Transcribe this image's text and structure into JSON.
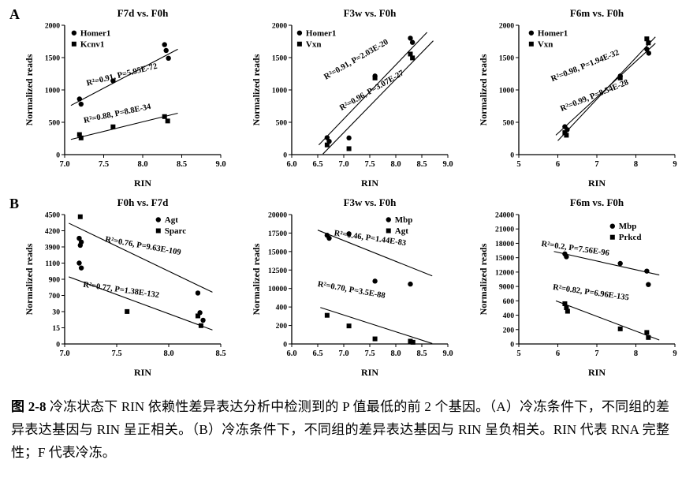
{
  "panels": {
    "a_label": "A",
    "b_label": "B"
  },
  "caption": {
    "label": "图 2-8",
    "text": " 冷冻状态下 RIN 依赖性差异表达分析中检测到的 P 值最低的前 2 个基因。（A）冷冻条件下，不同组的差异表达基因与 RIN 呈正相关。（B）冷冻条件下，不同组的差异表达基因与 RIN 呈负相关。RIN 代表 RNA 完整性；F 代表冷冻。"
  },
  "chart_data": [
    {
      "type": "scatter",
      "title": "F7d vs. F0h",
      "xlabel": "RIN",
      "ylabel": "Normalized reads",
      "x_ticks": [
        "7.0",
        "7.5",
        "8.0",
        "8.5",
        "9.0"
      ],
      "y_ticks": [
        "0",
        "500",
        "1000",
        "1500",
        "2000"
      ],
      "legend": {
        "fx": 0.06,
        "fy": 0.02
      },
      "series": [
        {
          "name": "Homer1",
          "marker": "circle",
          "points": [
            [
              7.19,
              860
            ],
            [
              7.21,
              780
            ],
            [
              7.62,
              1140
            ],
            [
              8.28,
              1700
            ],
            [
              8.3,
              1610
            ],
            [
              8.33,
              1490
            ]
          ]
        },
        {
          "name": "Kcnv1",
          "marker": "square",
          "points": [
            [
              7.19,
              310
            ],
            [
              7.21,
              258
            ],
            [
              7.62,
              430
            ],
            [
              8.28,
              588
            ],
            [
              8.32,
              520
            ]
          ]
        }
      ],
      "trend_lines": [
        {
          "x1": 7.08,
          "y1": 760,
          "x2": 8.45,
          "y2": 1630
        },
        {
          "x1": 7.08,
          "y1": 235,
          "x2": 8.45,
          "y2": 640
        }
      ],
      "annotations": [
        {
          "text": "R²=0.91, P=5.95E-72",
          "fx": 0.37,
          "fy": 0.4,
          "angle": -14
        },
        {
          "text": "R²=0.88, P=8.8E-34",
          "fx": 0.34,
          "fy": 0.7,
          "angle": -12
        }
      ]
    },
    {
      "type": "scatter",
      "title": "F3w vs. F0h",
      "xlabel": "RIN",
      "ylabel": "Normalized reads",
      "x_ticks": [
        "6.0",
        "6.5",
        "7.0",
        "7.5",
        "8.0",
        "8.5",
        "9.0"
      ],
      "y_ticks": [
        "0",
        "500",
        "1000",
        "1500",
        "2000"
      ],
      "legend": {
        "fx": 0.05,
        "fy": 0.02
      },
      "series": [
        {
          "name": "Homer1",
          "marker": "circle",
          "points": [
            [
              6.68,
              262
            ],
            [
              6.72,
              205
            ],
            [
              7.1,
              258
            ],
            [
              7.6,
              1215
            ],
            [
              8.28,
              1800
            ],
            [
              8.32,
              1735
            ]
          ]
        },
        {
          "name": "Vxn",
          "marker": "square",
          "points": [
            [
              6.68,
              150
            ],
            [
              7.1,
              92
            ],
            [
              7.6,
              1185
            ],
            [
              8.28,
              1555
            ],
            [
              8.32,
              1495
            ]
          ]
        }
      ],
      "trend_lines": [
        {
          "x1": 6.52,
          "y1": 150,
          "x2": 8.6,
          "y2": 1890
        },
        {
          "x1": 6.6,
          "y1": 10,
          "x2": 8.72,
          "y2": 1760
        }
      ],
      "annotations": [
        {
          "text": "R²=0.91, P=2.03E-20",
          "fx": 0.42,
          "fy": 0.28,
          "angle": -30
        },
        {
          "text": "R²=0.96, P=3.07E-27",
          "fx": 0.52,
          "fy": 0.52,
          "angle": -30
        }
      ]
    },
    {
      "type": "scatter",
      "title": "F6m vs. F0h",
      "xlabel": "RIN",
      "ylabel": "Normalized reads",
      "x_ticks": [
        "5",
        "6",
        "7",
        "8",
        "9"
      ],
      "y_ticks": [
        "0",
        "500",
        "1000",
        "1500",
        "2000"
      ],
      "legend": {
        "fx": 0.08,
        "fy": 0.02
      },
      "series": [
        {
          "name": "Homer1",
          "marker": "circle",
          "points": [
            [
              6.18,
              432
            ],
            [
              6.24,
              386
            ],
            [
              7.6,
              1215
            ],
            [
              8.28,
              1630
            ],
            [
              8.33,
              1568
            ]
          ]
        },
        {
          "name": "Vxn",
          "marker": "square",
          "points": [
            [
              6.18,
              340
            ],
            [
              6.22,
              300
            ],
            [
              7.6,
              1185
            ],
            [
              8.28,
              1790
            ],
            [
              8.32,
              1728
            ]
          ]
        }
      ],
      "trend_lines": [
        {
          "x1": 5.95,
          "y1": 300,
          "x2": 8.5,
          "y2": 1720
        },
        {
          "x1": 6.0,
          "y1": 215,
          "x2": 8.5,
          "y2": 1820
        }
      ],
      "annotations": [
        {
          "text": "R²=0.98, P=1.94E-32",
          "fx": 0.43,
          "fy": 0.33,
          "angle": -22
        },
        {
          "text": "R²=0.99, P=8.54E-28",
          "fx": 0.49,
          "fy": 0.56,
          "angle": -22
        }
      ]
    },
    {
      "type": "scatter",
      "title": "F0h vs. F7d",
      "xlabel": "RIN",
      "ylabel": "Normalized reads",
      "x_ticks": [
        "7.0",
        "7.5",
        "8.0",
        "8.5"
      ],
      "y_ticks": [
        "0",
        "15",
        "30",
        "700",
        "900",
        "1100",
        "3900",
        "4200",
        "4500"
      ],
      "legend": {
        "fx": 0.6,
        "fy": 0.0
      },
      "series": [
        {
          "name": "Agt",
          "marker": "circle",
          "points": [
            [
              7.14,
              4060
            ],
            [
              7.16,
              3990
            ],
            [
              7.15,
              3930
            ],
            [
              7.14,
              1100
            ],
            [
              7.16,
              1040
            ],
            [
              8.28,
              730
            ],
            [
              8.3,
              29
            ],
            [
              8.33,
              22
            ]
          ]
        },
        {
          "name": "Sparc",
          "marker": "square",
          "points": [
            [
              7.15,
              4460
            ],
            [
              7.6,
              33
            ],
            [
              8.28,
              26
            ],
            [
              8.31,
              17
            ]
          ]
        }
      ],
      "trend_lines": [
        {
          "x1": 7.04,
          "y1": 4340,
          "x2": 8.42,
          "y2": 740
        },
        {
          "x1": 7.04,
          "y1": 930,
          "x2": 8.42,
          "y2": 13
        }
      ],
      "annotations": [
        {
          "text": "R²=0.76, P=9.63E-109",
          "fx": 0.5,
          "fy": 0.26,
          "angle": 10
        },
        {
          "text": "R²=0.77, P=1.38E-132",
          "fx": 0.36,
          "fy": 0.6,
          "angle": 8
        }
      ]
    },
    {
      "type": "scatter",
      "title": "F3w vs. F0h",
      "xlabel": "RIN",
      "ylabel": "Normalized reads",
      "x_ticks": [
        "6.0",
        "6.5",
        "7.0",
        "7.5",
        "8.0",
        "8.5",
        "9.0"
      ],
      "y_ticks": [
        "0",
        "200",
        "400",
        "10000",
        "12500",
        "15000",
        "17500",
        "20000"
      ],
      "legend": {
        "fx": 0.62,
        "fy": 0.0
      },
      "series": [
        {
          "name": "Mbp",
          "marker": "circle",
          "points": [
            [
              6.68,
              17200
            ],
            [
              6.72,
              16800
            ],
            [
              7.1,
              17400
            ],
            [
              7.6,
              11000
            ],
            [
              8.28,
              10600
            ]
          ]
        },
        {
          "name": "Agt",
          "marker": "square",
          "points": [
            [
              6.68,
              310
            ],
            [
              7.1,
              195
            ],
            [
              7.6,
              55
            ],
            [
              8.28,
              30
            ],
            [
              8.33,
              18
            ]
          ]
        }
      ],
      "trend_lines": [
        {
          "x1": 6.5,
          "y1": 17900,
          "x2": 8.7,
          "y2": 11700
        },
        {
          "x1": 6.55,
          "y1": 395,
          "x2": 8.7,
          "y2": 5
        }
      ],
      "annotations": [
        {
          "text": "R²=0.46, P=1.44E-83",
          "fx": 0.5,
          "fy": 0.2,
          "angle": 8
        },
        {
          "text": "R²=0.70, P=3.5E-88",
          "fx": 0.38,
          "fy": 0.6,
          "angle": 10
        }
      ]
    },
    {
      "type": "scatter",
      "title": "F6m vs. F0h",
      "xlabel": "RIN",
      "ylabel": "Normalized reads",
      "x_ticks": [
        "5",
        "6",
        "7",
        "8",
        "9"
      ],
      "y_ticks": [
        "0",
        "200",
        "400",
        "600",
        "9000",
        "12000",
        "15000",
        "18000",
        "21000",
        "24000"
      ],
      "legend": {
        "fx": 0.6,
        "fy": 0.05
      },
      "series": [
        {
          "name": "Mbp",
          "marker": "circle",
          "points": [
            [
              6.18,
              15800
            ],
            [
              6.22,
              15200
            ],
            [
              7.6,
              13800
            ],
            [
              8.28,
              12200
            ],
            [
              8.32,
              9400
            ]
          ]
        },
        {
          "name": "Prkcd",
          "marker": "square",
          "points": [
            [
              6.18,
              560
            ],
            [
              6.22,
              505
            ],
            [
              6.25,
              455
            ],
            [
              7.6,
              210
            ],
            [
              8.28,
              160
            ],
            [
              8.32,
              90
            ]
          ]
        }
      ],
      "trend_lines": [
        {
          "x1": 5.9,
          "y1": 16300,
          "x2": 8.6,
          "y2": 11400
        },
        {
          "x1": 5.95,
          "y1": 600,
          "x2": 8.6,
          "y2": 55
        }
      ],
      "annotations": [
        {
          "text": "R²=0.2, P=7.56E-96",
          "fx": 0.36,
          "fy": 0.28,
          "angle": 8
        },
        {
          "text": "R²=0.82, P=6.96E-135",
          "fx": 0.46,
          "fy": 0.62,
          "angle": 8
        }
      ]
    }
  ]
}
